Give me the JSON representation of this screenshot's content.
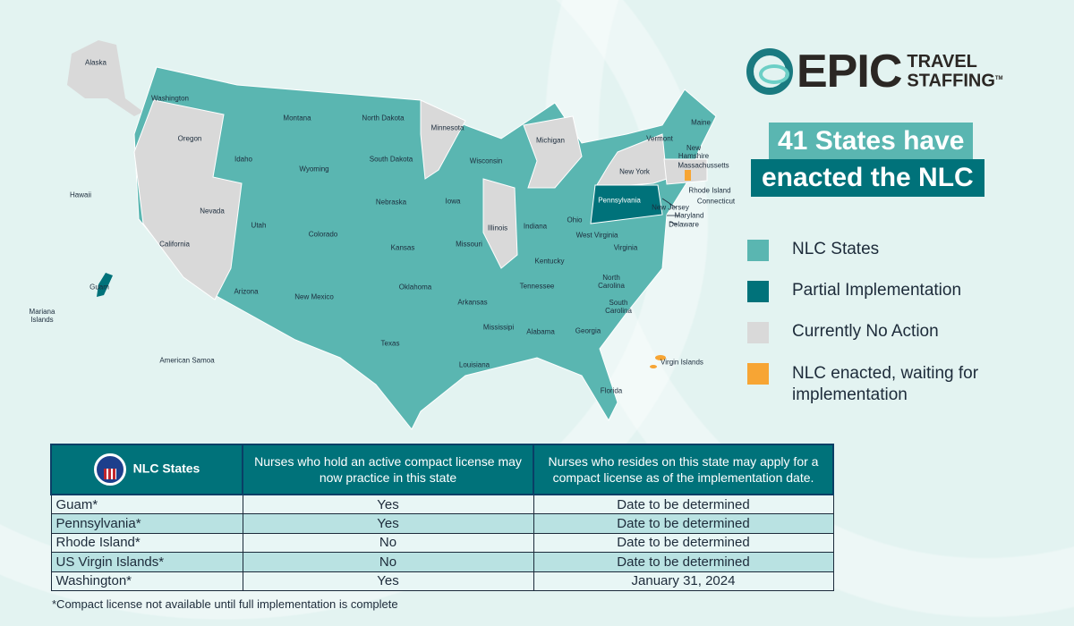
{
  "colors": {
    "nlc": "#5ab6b1",
    "partial": "#00727a",
    "none": "#d9d9d9",
    "waiting": "#f7a534"
  },
  "logo": {
    "brand": "EPIC",
    "line1": "TRAVEL",
    "line2": "STAFFING",
    "tm": "TM"
  },
  "headline": {
    "line1": "41 States have",
    "line2": "enacted the NLC"
  },
  "legend": [
    {
      "label": "NLC States",
      "color": "#5ab6b1"
    },
    {
      "label": "Partial Implementation",
      "color": "#00727a"
    },
    {
      "label": "Currently No Action",
      "color": "#d9d9d9"
    },
    {
      "label": "NLC enacted, waiting for implementation",
      "color": "#f7a534"
    }
  ],
  "map_labels": {
    "washington": "Washington",
    "oregon": "Oregon",
    "california": "California",
    "nevada": "Nevada",
    "idaho": "Idaho",
    "montana": "Montana",
    "wyoming": "Wyoming",
    "utah": "Utah",
    "colorado": "Colorado",
    "arizona": "Arizona",
    "new_mexico": "New Mexico",
    "north_dakota": "North Dakota",
    "south_dakota": "South Dakota",
    "nebraska": "Nebraska",
    "kansas": "Kansas",
    "oklahoma": "Oklahoma",
    "texas": "Texas",
    "minnesota": "Minnesota",
    "iowa": "Iowa",
    "missouri": "Missouri",
    "arkansas": "Arkansas",
    "louisiana": "Louisiana",
    "wisconsin": "Wisconsin",
    "illinois": "Illinois",
    "michigan": "Michigan",
    "indiana": "Indiana",
    "ohio": "Ohio",
    "kentucky": "Kentucky",
    "tennessee": "Tennessee",
    "mississippi": "Mississipi",
    "alabama": "Alabama",
    "georgia": "Georgia",
    "florida": "Florida",
    "south_carolina": "South Carolina",
    "north_carolina": "North Carolina",
    "virginia": "Virginia",
    "west_virginia": "West Virginia",
    "pennsylvania": "Pennsylvania",
    "new_york": "New York",
    "vermont": "Vermont",
    "new_hampshire": "New Hamshire",
    "maine": "Maine",
    "massachusetts": "Massachussetts",
    "rhode_island": "Rhode Island",
    "connecticut": "Connecticut",
    "new_jersey": "New Jersey",
    "maryland": "Maryland",
    "delaware": "Delaware",
    "alaska": "Alaska",
    "hawaii": "Hawaii",
    "guam": "Guam",
    "mariana": "Mariana Islands",
    "samoa": "American Samoa",
    "virgin_islands": "Virgin Islands"
  },
  "table": {
    "header": [
      "NLC States",
      "Nurses who hold an active compact license may now practice in this state",
      "Nurses who resides on this state may apply for a compact license as of the implementation date."
    ],
    "rows": [
      [
        "Guam*",
        "Yes",
        "Date to be determined"
      ],
      [
        "Pennsylvania*",
        "Yes",
        "Date to be determined"
      ],
      [
        "Rhode Island*",
        "No",
        "Date to be determined"
      ],
      [
        "US Virgin Islands*",
        "No",
        "Date to be determined"
      ],
      [
        "Washington*",
        "Yes",
        "January 31, 2024"
      ]
    ],
    "seal_text": "NLC"
  },
  "footnote": "*Compact license not available until full implementation is complete"
}
